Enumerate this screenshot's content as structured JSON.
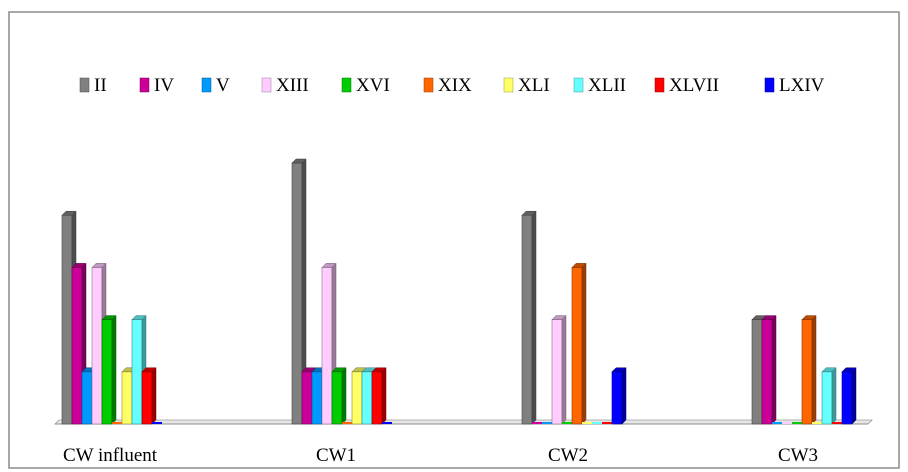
{
  "chart_data": {
    "type": "bar",
    "style": "3d-clustered-column",
    "categories": [
      "CW influent",
      "CW1",
      "CW2",
      "CW3"
    ],
    "ylim": [
      0,
      5
    ],
    "grid": false,
    "legend_position": "top",
    "series": [
      {
        "name": "II",
        "color": "#808080",
        "values": [
          4,
          5,
          4,
          2
        ]
      },
      {
        "name": "IV",
        "color": "#cc0099",
        "values": [
          3,
          1,
          0,
          2
        ]
      },
      {
        "name": "V",
        "color": "#0099ff",
        "values": [
          1,
          1,
          0,
          0
        ]
      },
      {
        "name": "XIII",
        "color": "#ffccff",
        "values": [
          3,
          3,
          2,
          0
        ]
      },
      {
        "name": "XVI",
        "color": "#00cc00",
        "values": [
          2,
          1,
          0,
          0
        ]
      },
      {
        "name": "XIX",
        "color": "#ff6600",
        "values": [
          0,
          0,
          3,
          2
        ]
      },
      {
        "name": "XLI",
        "color": "#ffff66",
        "values": [
          1,
          1,
          0,
          0
        ]
      },
      {
        "name": "XLII",
        "color": "#66ffff",
        "values": [
          2,
          1,
          0,
          1
        ]
      },
      {
        "name": "XLVII",
        "color": "#ff0000",
        "values": [
          1,
          1,
          0,
          0
        ]
      },
      {
        "name": "LXIV",
        "color": "#0000ff",
        "values": [
          0,
          0,
          1,
          1
        ]
      }
    ]
  }
}
